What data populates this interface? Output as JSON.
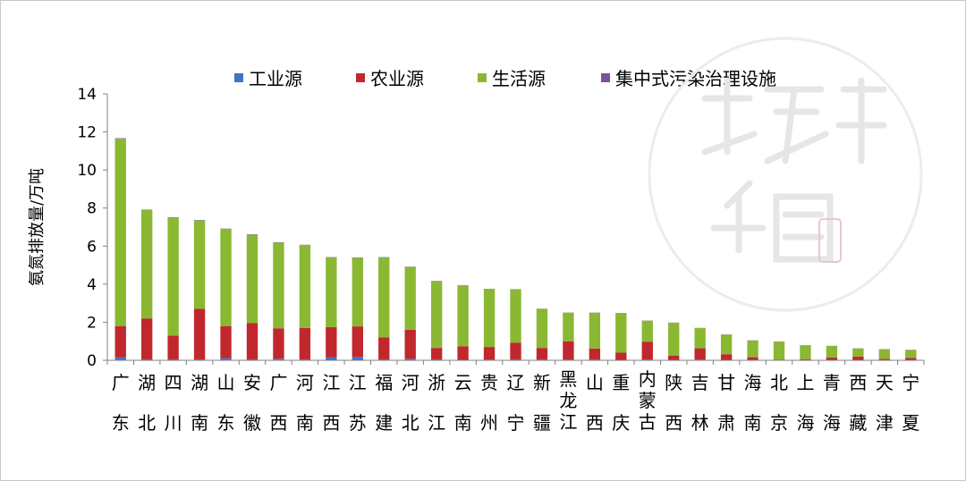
{
  "chart_data": {
    "type": "bar",
    "stacked": true,
    "ylabel": "氨氮排放量/万吨",
    "ylim": [
      0,
      14
    ],
    "yticks": [
      0,
      2,
      4,
      6,
      8,
      10,
      12,
      14
    ],
    "grid": false,
    "legend_position": "top-center",
    "categories": [
      [
        "广",
        "东"
      ],
      [
        "湖",
        "北"
      ],
      [
        "四",
        "川"
      ],
      [
        "湖",
        "南"
      ],
      [
        "山",
        "东"
      ],
      [
        "安",
        "徽"
      ],
      [
        "广",
        "西"
      ],
      [
        "河",
        "南"
      ],
      [
        "江",
        "西"
      ],
      [
        "江",
        "苏"
      ],
      [
        "福",
        "建"
      ],
      [
        "河",
        "北"
      ],
      [
        "浙",
        "江"
      ],
      [
        "云",
        "南"
      ],
      [
        "贵",
        "州"
      ],
      [
        "辽",
        "宁"
      ],
      [
        "新",
        "疆"
      ],
      [
        "黑",
        "龙",
        "江"
      ],
      [
        "山",
        "西"
      ],
      [
        "重",
        "庆"
      ],
      [
        "内",
        "蒙",
        "古"
      ],
      [
        "陕",
        "西"
      ],
      [
        "吉",
        "林"
      ],
      [
        "甘",
        "肃"
      ],
      [
        "海",
        "南"
      ],
      [
        "北",
        "京"
      ],
      [
        "上",
        "海"
      ],
      [
        "青",
        "海"
      ],
      [
        "西",
        "藏"
      ],
      [
        "天",
        "津"
      ],
      [
        "宁",
        "夏"
      ]
    ],
    "series": [
      {
        "name": "工业源",
        "color": "#4472C4",
        "values": [
          0.15,
          0.05,
          0.05,
          0.05,
          0.12,
          0.05,
          0.08,
          0.05,
          0.15,
          0.18,
          0.05,
          0.08,
          0.05,
          0.02,
          0.03,
          0.05,
          0.05,
          0.03,
          0.05,
          0.02,
          0.05,
          0.02,
          0.03,
          0.01,
          0.02,
          0.02,
          0.02,
          0.01,
          0.01,
          0.02,
          0.02
        ]
      },
      {
        "name": "农业源",
        "color": "#C0282D",
        "values": [
          1.65,
          2.15,
          1.25,
          2.65,
          1.68,
          1.9,
          1.6,
          1.65,
          1.6,
          1.6,
          1.15,
          1.52,
          0.6,
          0.72,
          0.67,
          0.88,
          0.6,
          0.97,
          0.57,
          0.38,
          0.93,
          0.23,
          0.6,
          0.31,
          0.14,
          0.02,
          0.04,
          0.14,
          0.19,
          0.06,
          0.11
        ]
      },
      {
        "name": "生活源",
        "color": "#8AB833",
        "values": [
          9.85,
          5.7,
          6.2,
          4.65,
          5.1,
          4.65,
          4.5,
          4.35,
          3.65,
          3.6,
          4.2,
          3.3,
          3.5,
          3.2,
          3.05,
          2.8,
          2.05,
          1.5,
          1.88,
          2.08,
          1.1,
          1.72,
          1.06,
          1.03,
          0.88,
          0.94,
          0.72,
          0.6,
          0.42,
          0.5,
          0.41
        ]
      },
      {
        "name": "集中式污染治理设施",
        "color": "#7F4FA0",
        "values": [
          0.02,
          0.02,
          0.02,
          0.02,
          0.02,
          0.02,
          0.02,
          0.02,
          0.02,
          0.02,
          0.02,
          0.02,
          0.02,
          0.01,
          0.01,
          0.01,
          0.01,
          0.01,
          0.01,
          0.01,
          0.01,
          0.01,
          0.01,
          0.01,
          0.01,
          0.01,
          0.01,
          0.01,
          0.01,
          0.01,
          0.01
        ]
      }
    ]
  },
  "watermark": {
    "icon": "huanbao-shuiquan-seal-icon",
    "text": "環保水圈"
  }
}
